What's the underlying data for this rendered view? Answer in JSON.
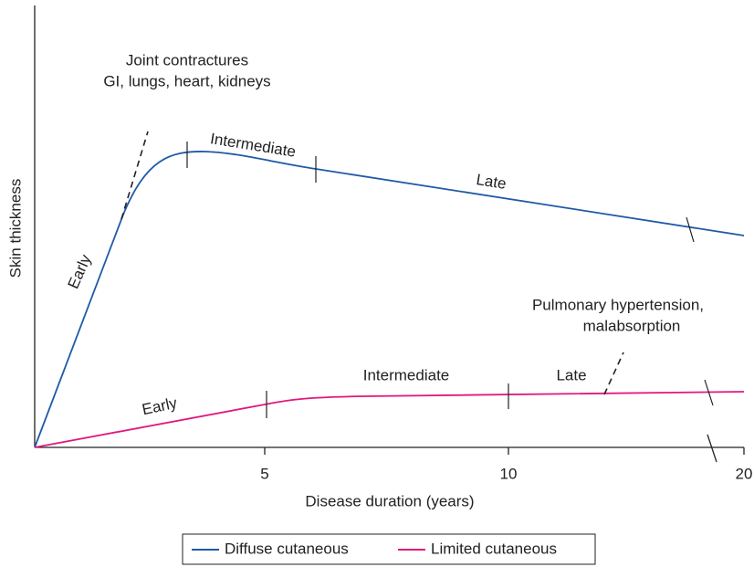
{
  "diagram": {
    "y_axis_label": "Skin thickness",
    "x_axis_label": "Disease duration (years)",
    "x_ticks": [
      "5",
      "10",
      "20"
    ],
    "diffuse": {
      "early": "Early",
      "intermediate": "Intermediate",
      "late": "Late",
      "note": [
        "Joint contractures",
        "GI, lungs, heart, kidneys"
      ]
    },
    "limited": {
      "early": "Early",
      "intermediate": "Intermediate",
      "late": "Late",
      "note": [
        "Pulmonary hypertension,",
        "malabsorption"
      ]
    },
    "legend": [
      {
        "name": "Diffuse cutaneous",
        "color": "#1f5aa6"
      },
      {
        "name": "Limited cutaneous",
        "color": "#e0197d"
      }
    ]
  }
}
